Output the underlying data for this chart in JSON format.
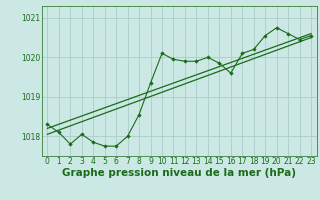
{
  "bg_color": "#cce8e4",
  "grid_color": "#aacccc",
  "line_color": "#1a6b1a",
  "marker_color": "#1a6b1a",
  "xlabel": "Graphe pression niveau de la mer (hPa)",
  "ylim": [
    1017.5,
    1021.3
  ],
  "xlim": [
    -0.5,
    23.5
  ],
  "yticks": [
    1018,
    1019,
    1020,
    1021
  ],
  "xticks": [
    0,
    1,
    2,
    3,
    4,
    5,
    6,
    7,
    8,
    9,
    10,
    11,
    12,
    13,
    14,
    15,
    16,
    17,
    18,
    19,
    20,
    21,
    22,
    23
  ],
  "main_data": [
    [
      0,
      1018.3
    ],
    [
      1,
      1018.1
    ],
    [
      2,
      1017.8
    ],
    [
      3,
      1018.05
    ],
    [
      4,
      1017.85
    ],
    [
      5,
      1017.75
    ],
    [
      6,
      1017.75
    ],
    [
      7,
      1018.0
    ],
    [
      8,
      1018.55
    ],
    [
      9,
      1019.35
    ],
    [
      10,
      1020.1
    ],
    [
      11,
      1019.95
    ],
    [
      12,
      1019.9
    ],
    [
      13,
      1019.9
    ],
    [
      14,
      1020.0
    ],
    [
      15,
      1019.85
    ],
    [
      16,
      1019.6
    ],
    [
      17,
      1020.1
    ],
    [
      18,
      1020.2
    ],
    [
      19,
      1020.55
    ],
    [
      20,
      1020.75
    ],
    [
      21,
      1020.6
    ],
    [
      22,
      1020.45
    ],
    [
      23,
      1020.55
    ]
  ],
  "trend_line1": [
    [
      0,
      1018.05
    ],
    [
      23,
      1020.5
    ]
  ],
  "trend_line2": [
    [
      0,
      1018.2
    ],
    [
      23,
      1020.6
    ]
  ],
  "xlabel_fontsize": 7.5,
  "tick_fontsize": 5.5
}
